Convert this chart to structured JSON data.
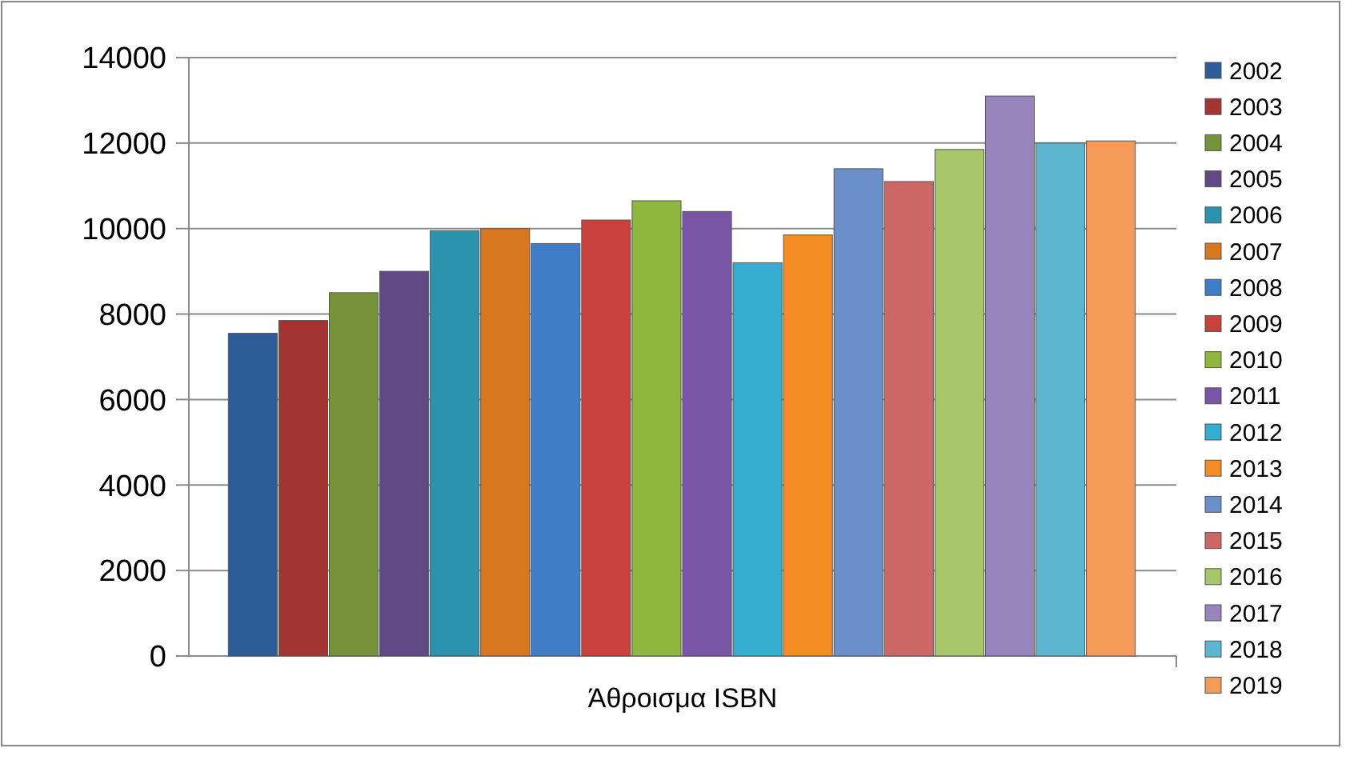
{
  "chart_data": {
    "type": "bar",
    "categories": [
      "Άθροισμα ISBN"
    ],
    "series": [
      {
        "name": "2002",
        "color": "#2c5d98",
        "values": [
          7550
        ]
      },
      {
        "name": "2003",
        "color": "#a33431",
        "values": [
          7850
        ]
      },
      {
        "name": "2004",
        "color": "#76933c",
        "values": [
          8500
        ]
      },
      {
        "name": "2005",
        "color": "#5f4a86",
        "values": [
          9000
        ]
      },
      {
        "name": "2006",
        "color": "#2b93ad",
        "values": [
          9950
        ]
      },
      {
        "name": "2007",
        "color": "#d8771f",
        "values": [
          10000
        ]
      },
      {
        "name": "2008",
        "color": "#3f7dc6",
        "values": [
          9650
        ]
      },
      {
        "name": "2009",
        "color": "#c9413d",
        "values": [
          10200
        ]
      },
      {
        "name": "2010",
        "color": "#8fb73f",
        "values": [
          10650
        ]
      },
      {
        "name": "2011",
        "color": "#7a55a6",
        "values": [
          10400
        ]
      },
      {
        "name": "2012",
        "color": "#33aed0",
        "values": [
          9200
        ]
      },
      {
        "name": "2013",
        "color": "#f38c22",
        "values": [
          9850
        ]
      },
      {
        "name": "2014",
        "color": "#6a8fc9",
        "values": [
          11400
        ]
      },
      {
        "name": "2015",
        "color": "#cd6766",
        "values": [
          11100
        ]
      },
      {
        "name": "2016",
        "color": "#a7c76a",
        "values": [
          11850
        ]
      },
      {
        "name": "2017",
        "color": "#9784bd",
        "values": [
          13100
        ]
      },
      {
        "name": "2018",
        "color": "#5cb6cf",
        "values": [
          12000
        ]
      },
      {
        "name": "2019",
        "color": "#f69a5a",
        "values": [
          12050
        ]
      }
    ],
    "ylim": [
      0,
      14000
    ],
    "yticks": [
      0,
      2000,
      4000,
      6000,
      8000,
      10000,
      12000,
      14000
    ],
    "grid": "y",
    "legend": "right"
  }
}
